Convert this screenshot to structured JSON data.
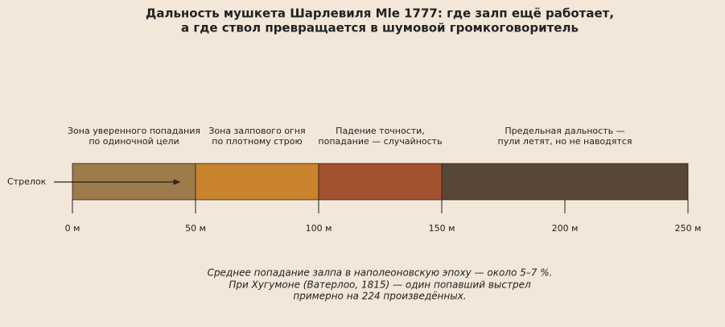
{
  "chart_data": {
    "type": "zones",
    "title": [
      "Дальность мушкета Шарлевиля Mle 1777: где залп ещё работает,",
      "а где ствол превращается в шумовой громкоговоритель"
    ],
    "zones": [
      {
        "start": 0,
        "end": 50,
        "color": "#9e7b4a",
        "label": [
          "Зона уверенного попадания",
          "по одиночной цели"
        ]
      },
      {
        "start": 50,
        "end": 100,
        "color": "#c8832c",
        "label": [
          "Зона залпового огня",
          "по плотному строю"
        ]
      },
      {
        "start": 100,
        "end": 150,
        "color": "#a2522f",
        "label": [
          "Падение точности,",
          "попадание — случайность"
        ]
      },
      {
        "start": 150,
        "end": 250,
        "color": "#584637",
        "label": [
          "Предельная дальность —",
          "пули летят, но не наводятся"
        ]
      }
    ],
    "shooter_label": "Стрелок",
    "xlim": [
      0,
      250
    ],
    "xticks": [
      {
        "value": 0,
        "label": "0 м"
      },
      {
        "value": 50,
        "label": "50 м"
      },
      {
        "value": 100,
        "label": "100 м"
      },
      {
        "value": 150,
        "label": "150 м"
      },
      {
        "value": 200,
        "label": "200 м"
      },
      {
        "value": 250,
        "label": "250 м"
      }
    ],
    "note": [
      "Среднее попадание залпа в наполеоновскую эпоху — около 5–7 %.",
      "При Хугумоне (Ватерлоо, 1815) — один попавший выстрел",
      "примерно на 224 произведённых."
    ]
  }
}
